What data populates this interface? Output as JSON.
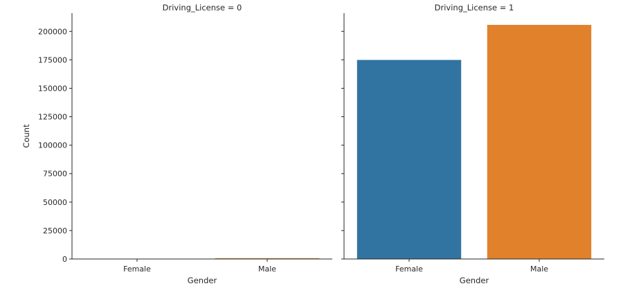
{
  "chart_data": {
    "type": "bar",
    "xlabel": "Gender",
    "ylabel": "Count",
    "ylim": [
      0,
      216000
    ],
    "yticks": [
      0,
      25000,
      50000,
      75000,
      100000,
      125000,
      150000,
      175000,
      200000
    ],
    "categories": [
      "Female",
      "Male"
    ],
    "grid": false,
    "panels": [
      {
        "title": "Driving_License = 0",
        "values": [
          100,
          712
        ]
      },
      {
        "title": "Driving_License = 1",
        "values": [
          174900,
          205700
        ]
      }
    ],
    "colors": [
      "#3274a1",
      "#e1812c"
    ]
  }
}
